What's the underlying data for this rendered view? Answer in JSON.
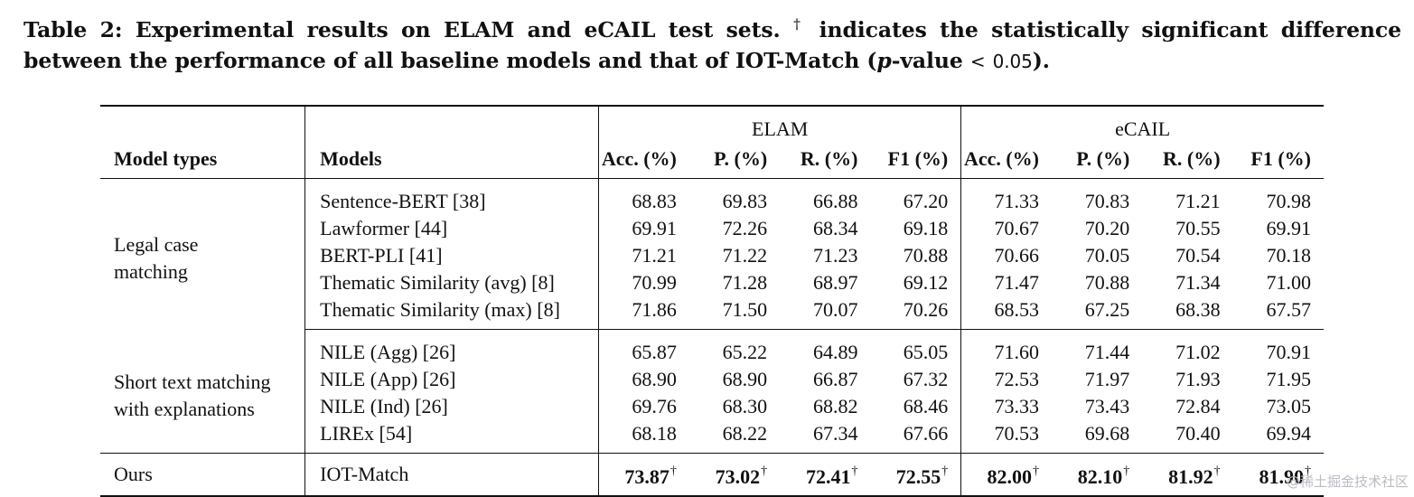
{
  "caption": {
    "prefix": "Table 2: Experimental results on ELAM and eCAIL test sets.",
    "dagger": "†",
    "middle": "indicates the statistically significant difference between the performance of all baseline models and that of IOT-Match (",
    "p": "p",
    "pv_label": "-value",
    "lt": "<",
    "pv_value": "0.05",
    "suffix": ")."
  },
  "groups": [
    "ELAM",
    "eCAIL"
  ],
  "headers": {
    "type": "Model types",
    "model": "Models",
    "metrics": [
      "Acc. (%)",
      "P. (%)",
      "R. (%)",
      "F1 (%)",
      "Acc. (%)",
      "P. (%)",
      "R. (%)",
      "F1 (%)"
    ]
  },
  "sections": [
    {
      "type_lines": [
        "Legal case",
        "matching"
      ],
      "rows": [
        {
          "model": "Sentence-BERT [38]",
          "values": [
            "68.83",
            "69.83",
            "66.88",
            "67.20",
            "71.33",
            "70.83",
            "71.21",
            "70.98"
          ]
        },
        {
          "model": "Lawformer [44]",
          "values": [
            "69.91",
            "72.26",
            "68.34",
            "69.18",
            "70.67",
            "70.20",
            "70.55",
            "69.91"
          ]
        },
        {
          "model": "BERT-PLI [41]",
          "values": [
            "71.21",
            "71.22",
            "71.23",
            "70.88",
            "70.66",
            "70.05",
            "70.54",
            "70.18"
          ]
        },
        {
          "model": "Thematic Similarity (avg) [8]",
          "values": [
            "70.99",
            "71.28",
            "68.97",
            "69.12",
            "71.47",
            "70.88",
            "71.34",
            "71.00"
          ]
        },
        {
          "model": "Thematic Similarity (max) [8]",
          "values": [
            "71.86",
            "71.50",
            "70.07",
            "70.26",
            "68.53",
            "67.25",
            "68.38",
            "67.57"
          ]
        }
      ]
    },
    {
      "type_lines": [
        "Short text matching",
        "with explanations"
      ],
      "rows": [
        {
          "model": "NILE (Agg) [26]",
          "values": [
            "65.87",
            "65.22",
            "64.89",
            "65.05",
            "71.60",
            "71.44",
            "71.02",
            "70.91"
          ]
        },
        {
          "model": "NILE (App) [26]",
          "values": [
            "68.90",
            "68.90",
            "66.87",
            "67.32",
            "72.53",
            "71.97",
            "71.93",
            "71.95"
          ]
        },
        {
          "model": "NILE (Ind) [26]",
          "values": [
            "69.76",
            "68.30",
            "68.82",
            "68.46",
            "73.33",
            "73.43",
            "72.84",
            "73.05"
          ]
        },
        {
          "model": "LIREx [54]",
          "values": [
            "68.18",
            "68.22",
            "67.34",
            "67.66",
            "70.53",
            "69.68",
            "70.40",
            "69.94"
          ]
        }
      ]
    }
  ],
  "ours": {
    "type": "Ours",
    "model": "IOT-Match",
    "values": [
      "73.87",
      "73.02",
      "72.41",
      "72.55",
      "82.00",
      "82.10",
      "81.92",
      "81.90"
    ],
    "mark": "†"
  },
  "watermark": "@稀土掘金技术社区"
}
